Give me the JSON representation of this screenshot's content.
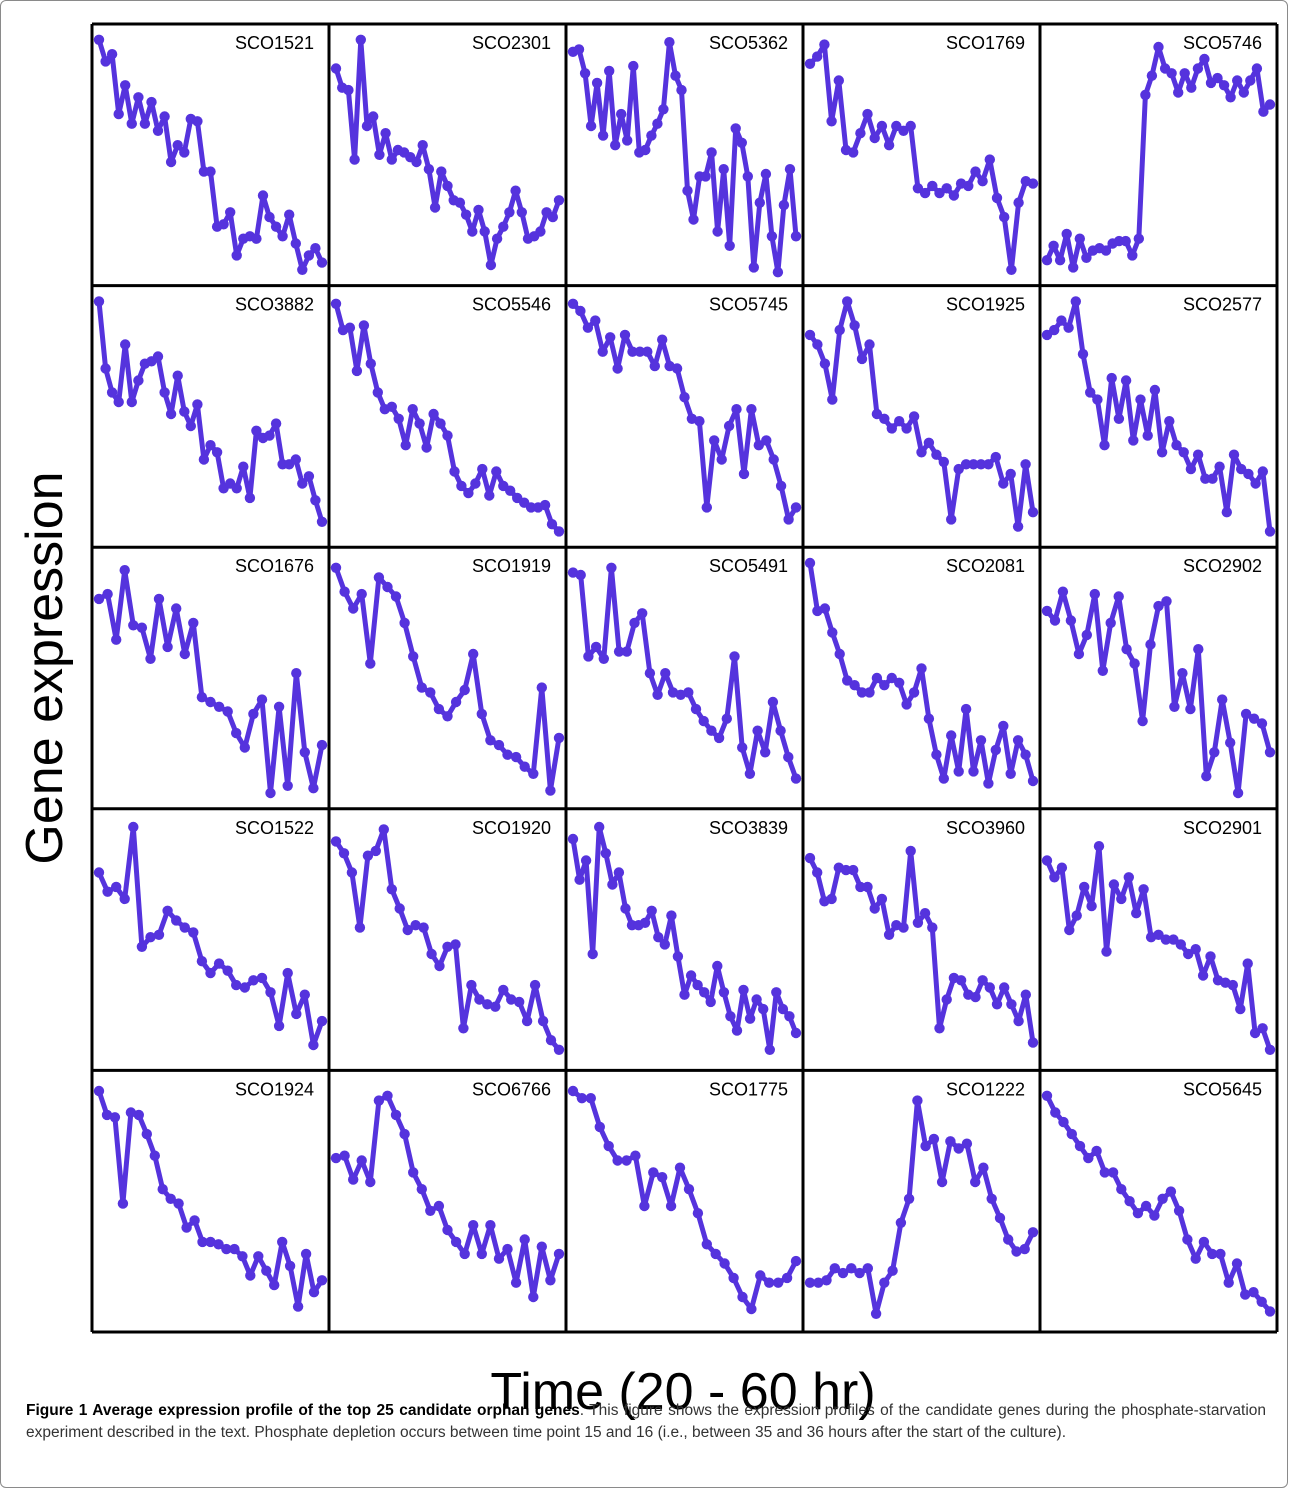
{
  "figure": {
    "y_label": "Gene expression",
    "x_label": "Time (20 - 60 hr)",
    "caption_title": "Figure 1 Average expression profile of the top 25 candidate orphan genes",
    "caption_body": ". This figure shows the expression profiles of the candidate genes during the phosphate-starvation experiment described in the text. Phosphate depletion occurs between time point 15 and 16 (i.e., between 35 and 36 hours after the start of the culture)."
  },
  "colors": {
    "series": "#5533dd",
    "frame": "#000000"
  },
  "chart_data": {
    "type": "line",
    "layout": "5x5 small multiples",
    "markers": "circles",
    "grid": false,
    "axis_ticks": false,
    "panels": [
      {
        "name": "SCO1521",
        "values": [
          0.98,
          0.89,
          0.92,
          0.67,
          0.79,
          0.63,
          0.74,
          0.63,
          0.72,
          0.6,
          0.66,
          0.47,
          0.54,
          0.51,
          0.65,
          0.64,
          0.43,
          0.43,
          0.2,
          0.21,
          0.26,
          0.08,
          0.15,
          0.16,
          0.15,
          0.33,
          0.24,
          0.2,
          0.16,
          0.25,
          0.13,
          0.02,
          0.08,
          0.11,
          0.05
        ]
      },
      {
        "name": "SCO2301",
        "values": [
          0.86,
          0.78,
          0.77,
          0.48,
          0.98,
          0.62,
          0.66,
          0.5,
          0.59,
          0.48,
          0.52,
          0.51,
          0.49,
          0.47,
          0.54,
          0.44,
          0.28,
          0.43,
          0.37,
          0.31,
          0.3,
          0.25,
          0.18,
          0.27,
          0.18,
          0.04,
          0.15,
          0.2,
          0.26,
          0.35,
          0.26,
          0.15,
          0.16,
          0.18,
          0.26,
          0.24,
          0.31
        ]
      },
      {
        "name": "SCO5362",
        "values": [
          0.93,
          0.94,
          0.84,
          0.62,
          0.8,
          0.58,
          0.85,
          0.54,
          0.67,
          0.56,
          0.87,
          0.51,
          0.52,
          0.58,
          0.63,
          0.69,
          0.97,
          0.83,
          0.77,
          0.35,
          0.23,
          0.41,
          0.41,
          0.51,
          0.18,
          0.44,
          0.12,
          0.61,
          0.55,
          0.41,
          0.03,
          0.3,
          0.42,
          0.16,
          0.01,
          0.29,
          0.44,
          0.16
        ]
      },
      {
        "name": "SCO1769",
        "values": [
          0.88,
          0.91,
          0.96,
          0.64,
          0.81,
          0.52,
          0.51,
          0.59,
          0.67,
          0.57,
          0.62,
          0.54,
          0.62,
          0.6,
          0.62,
          0.36,
          0.34,
          0.37,
          0.34,
          0.36,
          0.33,
          0.38,
          0.37,
          0.43,
          0.39,
          0.48,
          0.32,
          0.24,
          0.02,
          0.3,
          0.39,
          0.38
        ]
      },
      {
        "name": "SCO5746",
        "values": [
          0.06,
          0.12,
          0.06,
          0.17,
          0.03,
          0.15,
          0.07,
          0.1,
          0.11,
          0.1,
          0.13,
          0.14,
          0.14,
          0.08,
          0.15,
          0.75,
          0.83,
          0.95,
          0.86,
          0.84,
          0.76,
          0.84,
          0.78,
          0.86,
          0.9,
          0.8,
          0.82,
          0.79,
          0.74,
          0.81,
          0.76,
          0.81,
          0.86,
          0.68,
          0.71
        ]
      },
      {
        "name": "SCO3882",
        "values": [
          0.98,
          0.7,
          0.6,
          0.56,
          0.8,
          0.56,
          0.65,
          0.72,
          0.73,
          0.75,
          0.6,
          0.51,
          0.67,
          0.52,
          0.46,
          0.55,
          0.32,
          0.38,
          0.35,
          0.2,
          0.22,
          0.2,
          0.29,
          0.16,
          0.44,
          0.41,
          0.42,
          0.47,
          0.3,
          0.3,
          0.32,
          0.22,
          0.25,
          0.15,
          0.06
        ]
      },
      {
        "name": "SCO5546",
        "values": [
          0.97,
          0.86,
          0.87,
          0.69,
          0.88,
          0.72,
          0.6,
          0.53,
          0.54,
          0.49,
          0.38,
          0.53,
          0.47,
          0.37,
          0.51,
          0.47,
          0.42,
          0.27,
          0.21,
          0.18,
          0.22,
          0.28,
          0.17,
          0.27,
          0.21,
          0.19,
          0.16,
          0.14,
          0.12,
          0.12,
          0.13,
          0.05,
          0.02
        ]
      },
      {
        "name": "SCO5745",
        "values": [
          0.97,
          0.94,
          0.87,
          0.9,
          0.77,
          0.83,
          0.7,
          0.84,
          0.77,
          0.77,
          0.77,
          0.71,
          0.82,
          0.71,
          0.7,
          0.58,
          0.49,
          0.48,
          0.12,
          0.4,
          0.32,
          0.46,
          0.53,
          0.26,
          0.53,
          0.38,
          0.4,
          0.32,
          0.21,
          0.07,
          0.12
        ]
      },
      {
        "name": "SCO1925",
        "values": [
          0.84,
          0.8,
          0.72,
          0.57,
          0.86,
          0.98,
          0.88,
          0.74,
          0.8,
          0.51,
          0.49,
          0.45,
          0.48,
          0.45,
          0.5,
          0.35,
          0.39,
          0.34,
          0.31,
          0.07,
          0.28,
          0.3,
          0.3,
          0.3,
          0.3,
          0.33,
          0.22,
          0.26,
          0.04,
          0.3,
          0.1
        ]
      },
      {
        "name": "SCO2577",
        "values": [
          0.84,
          0.86,
          0.9,
          0.87,
          0.98,
          0.76,
          0.6,
          0.57,
          0.38,
          0.66,
          0.49,
          0.65,
          0.4,
          0.57,
          0.42,
          0.61,
          0.35,
          0.48,
          0.38,
          0.35,
          0.28,
          0.34,
          0.24,
          0.24,
          0.29,
          0.1,
          0.34,
          0.28,
          0.26,
          0.22,
          0.27,
          0.02
        ]
      },
      {
        "name": "SCO1676",
        "values": [
          0.83,
          0.85,
          0.66,
          0.95,
          0.72,
          0.71,
          0.58,
          0.83,
          0.63,
          0.79,
          0.6,
          0.73,
          0.42,
          0.4,
          0.38,
          0.36,
          0.27,
          0.21,
          0.35,
          0.41,
          0.02,
          0.38,
          0.05,
          0.52,
          0.19,
          0.04,
          0.22
        ]
      },
      {
        "name": "SCO1919",
        "values": [
          0.96,
          0.86,
          0.79,
          0.85,
          0.56,
          0.92,
          0.88,
          0.84,
          0.73,
          0.59,
          0.46,
          0.44,
          0.37,
          0.34,
          0.4,
          0.45,
          0.6,
          0.35,
          0.24,
          0.22,
          0.18,
          0.17,
          0.13,
          0.1,
          0.46,
          0.03,
          0.25
        ]
      },
      {
        "name": "SCO5491",
        "values": [
          0.94,
          0.93,
          0.59,
          0.63,
          0.58,
          0.96,
          0.61,
          0.61,
          0.73,
          0.77,
          0.52,
          0.43,
          0.52,
          0.44,
          0.43,
          0.44,
          0.37,
          0.32,
          0.28,
          0.25,
          0.33,
          0.59,
          0.21,
          0.1,
          0.28,
          0.19,
          0.4,
          0.28,
          0.17,
          0.08
        ]
      },
      {
        "name": "SCO2081",
        "values": [
          0.98,
          0.78,
          0.79,
          0.69,
          0.6,
          0.49,
          0.47,
          0.44,
          0.44,
          0.5,
          0.47,
          0.5,
          0.48,
          0.39,
          0.44,
          0.54,
          0.33,
          0.18,
          0.08,
          0.26,
          0.11,
          0.37,
          0.11,
          0.24,
          0.06,
          0.2,
          0.3,
          0.1,
          0.24,
          0.18,
          0.07
        ]
      },
      {
        "name": "SCO2902",
        "values": [
          0.78,
          0.74,
          0.86,
          0.74,
          0.6,
          0.68,
          0.85,
          0.53,
          0.73,
          0.84,
          0.62,
          0.56,
          0.32,
          0.64,
          0.8,
          0.82,
          0.38,
          0.52,
          0.37,
          0.62,
          0.09,
          0.19,
          0.41,
          0.23,
          0.02,
          0.35,
          0.33,
          0.31,
          0.19
        ]
      },
      {
        "name": "SCO1522",
        "values": [
          0.78,
          0.7,
          0.72,
          0.67,
          0.97,
          0.47,
          0.51,
          0.52,
          0.62,
          0.58,
          0.55,
          0.53,
          0.41,
          0.36,
          0.4,
          0.37,
          0.31,
          0.3,
          0.33,
          0.34,
          0.28,
          0.14,
          0.36,
          0.19,
          0.27,
          0.06,
          0.16
        ]
      },
      {
        "name": "SCO1920",
        "values": [
          0.91,
          0.86,
          0.78,
          0.55,
          0.85,
          0.87,
          0.96,
          0.71,
          0.63,
          0.54,
          0.56,
          0.55,
          0.44,
          0.39,
          0.47,
          0.48,
          0.13,
          0.31,
          0.25,
          0.23,
          0.22,
          0.29,
          0.25,
          0.24,
          0.16,
          0.31,
          0.16,
          0.08,
          0.04
        ]
      },
      {
        "name": "SCO3839",
        "values": [
          0.92,
          0.75,
          0.83,
          0.44,
          0.97,
          0.86,
          0.73,
          0.78,
          0.63,
          0.56,
          0.56,
          0.57,
          0.62,
          0.51,
          0.48,
          0.6,
          0.43,
          0.27,
          0.35,
          0.31,
          0.28,
          0.24,
          0.39,
          0.28,
          0.18,
          0.12,
          0.29,
          0.17,
          0.25,
          0.21,
          0.04,
          0.28,
          0.21,
          0.18,
          0.11
        ]
      },
      {
        "name": "SCO3960",
        "values": [
          0.84,
          0.78,
          0.66,
          0.67,
          0.8,
          0.79,
          0.79,
          0.72,
          0.72,
          0.63,
          0.67,
          0.52,
          0.56,
          0.55,
          0.87,
          0.57,
          0.61,
          0.55,
          0.13,
          0.25,
          0.34,
          0.33,
          0.27,
          0.26,
          0.33,
          0.3,
          0.23,
          0.3,
          0.23,
          0.16,
          0.27,
          0.07
        ]
      },
      {
        "name": "SCO2901",
        "values": [
          0.83,
          0.76,
          0.8,
          0.54,
          0.6,
          0.72,
          0.64,
          0.89,
          0.45,
          0.73,
          0.67,
          0.76,
          0.61,
          0.71,
          0.51,
          0.52,
          0.5,
          0.5,
          0.48,
          0.44,
          0.46,
          0.35,
          0.43,
          0.33,
          0.32,
          0.31,
          0.21,
          0.4,
          0.11,
          0.13,
          0.04
        ]
      },
      {
        "name": "SCO1924",
        "values": [
          0.96,
          0.86,
          0.85,
          0.49,
          0.87,
          0.86,
          0.78,
          0.69,
          0.55,
          0.51,
          0.49,
          0.39,
          0.42,
          0.33,
          0.33,
          0.32,
          0.3,
          0.3,
          0.27,
          0.19,
          0.27,
          0.21,
          0.15,
          0.33,
          0.23,
          0.06,
          0.28,
          0.12,
          0.17
        ]
      },
      {
        "name": "SCO6766",
        "values": [
          0.68,
          0.69,
          0.59,
          0.67,
          0.58,
          0.92,
          0.94,
          0.86,
          0.78,
          0.62,
          0.55,
          0.46,
          0.48,
          0.38,
          0.33,
          0.28,
          0.4,
          0.28,
          0.4,
          0.26,
          0.3,
          0.16,
          0.34,
          0.1,
          0.31,
          0.17,
          0.28
        ]
      },
      {
        "name": "SCO1775",
        "values": [
          0.96,
          0.93,
          0.93,
          0.81,
          0.73,
          0.67,
          0.67,
          0.69,
          0.48,
          0.62,
          0.6,
          0.48,
          0.64,
          0.55,
          0.45,
          0.32,
          0.28,
          0.24,
          0.18,
          0.1,
          0.05,
          0.19,
          0.16,
          0.16,
          0.18,
          0.25
        ]
      },
      {
        "name": "SCO1222",
        "values": [
          0.16,
          0.16,
          0.17,
          0.22,
          0.2,
          0.22,
          0.2,
          0.22,
          0.03,
          0.16,
          0.21,
          0.41,
          0.51,
          0.92,
          0.73,
          0.76,
          0.58,
          0.75,
          0.72,
          0.74,
          0.58,
          0.64,
          0.51,
          0.43,
          0.34,
          0.29,
          0.3,
          0.37
        ]
      },
      {
        "name": "SCO5645",
        "values": [
          0.94,
          0.87,
          0.83,
          0.78,
          0.73,
          0.68,
          0.71,
          0.62,
          0.62,
          0.55,
          0.5,
          0.45,
          0.48,
          0.44,
          0.51,
          0.54,
          0.46,
          0.34,
          0.26,
          0.33,
          0.28,
          0.28,
          0.16,
          0.24,
          0.11,
          0.12,
          0.08,
          0.04
        ]
      }
    ]
  }
}
